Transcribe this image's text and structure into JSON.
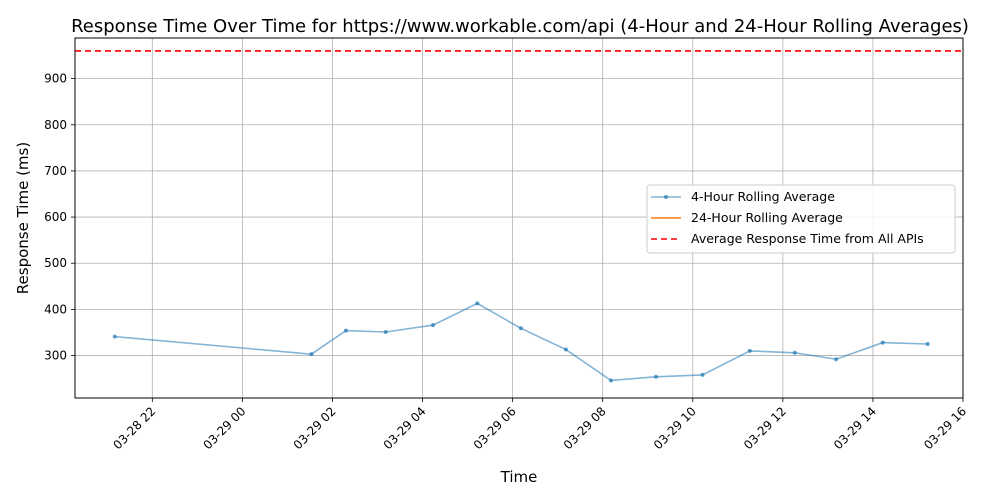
{
  "chart_data": {
    "type": "line",
    "title": "Response Time Over Time for https://www.workable.com/api (4-Hour and 24-Hour Rolling Averages)",
    "xlabel": "Time",
    "ylabel": "Response Time (ms)",
    "x_ticks": [
      "03-28 22",
      "03-29 00",
      "03-29 02",
      "03-29 04",
      "03-29 06",
      "03-29 08",
      "03-29 10",
      "03-29 12",
      "03-29 14",
      "03-29 16"
    ],
    "y_ticks": [
      300,
      400,
      500,
      600,
      700,
      800,
      900
    ],
    "xlim": [
      "2024-03-28T20:17",
      "2024-03-29T16:00"
    ],
    "ylim": [
      208,
      988
    ],
    "grid": true,
    "legend_position": "center-right",
    "series": [
      {
        "name": "4-Hour Rolling Average",
        "color": "#1f77b4",
        "style": "solid-with-markers",
        "points": [
          {
            "x": "2024-03-28T21:10",
            "y": 341
          },
          {
            "x": "2024-03-29T01:32",
            "y": 303
          },
          {
            "x": "2024-03-29T02:18",
            "y": 354
          },
          {
            "x": "2024-03-29T03:11",
            "y": 351
          },
          {
            "x": "2024-03-29T04:14",
            "y": 366
          },
          {
            "x": "2024-03-29T05:13",
            "y": 413
          },
          {
            "x": "2024-03-29T06:11",
            "y": 359
          },
          {
            "x": "2024-03-29T07:11",
            "y": 313
          },
          {
            "x": "2024-03-29T08:11",
            "y": 246
          },
          {
            "x": "2024-03-29T09:11",
            "y": 254
          },
          {
            "x": "2024-03-29T10:13",
            "y": 258
          },
          {
            "x": "2024-03-29T11:16",
            "y": 310
          },
          {
            "x": "2024-03-29T12:16",
            "y": 306
          },
          {
            "x": "2024-03-29T13:11",
            "y": 292
          },
          {
            "x": "2024-03-29T14:13",
            "y": 328
          },
          {
            "x": "2024-03-29T15:13",
            "y": 325
          }
        ]
      },
      {
        "name": "24-Hour Rolling Average",
        "color": "#ff7f0e",
        "style": "solid",
        "points": []
      },
      {
        "name": "Average Response Time from All APIs",
        "color": "#ff0000",
        "style": "dashed",
        "constant": 960
      }
    ]
  }
}
